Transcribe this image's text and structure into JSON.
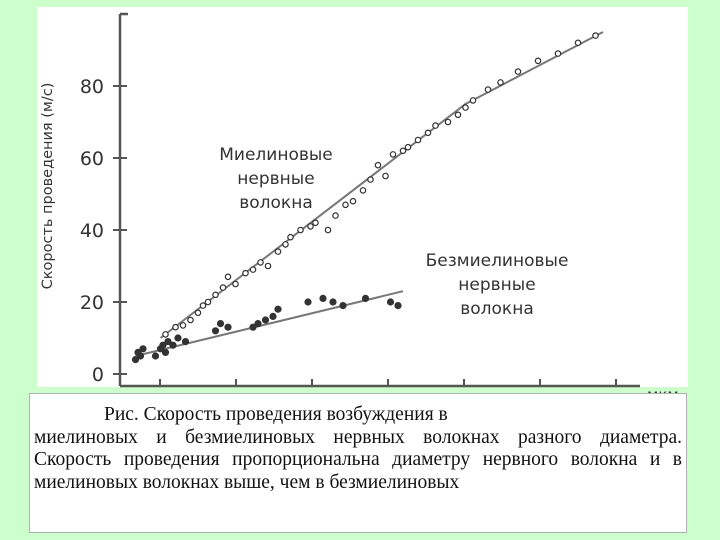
{
  "chart_data": {
    "type": "scatter",
    "ylabel": "Скорость проведения (м/с)",
    "xlabel": "мкм",
    "ylim": [
      0,
      100
    ],
    "y_ticks": [
      0,
      20,
      40,
      60,
      80
    ],
    "series": [
      {
        "name": "Миелиновые нервные волокна",
        "name_lines": [
          "Миелиновые",
          "нервные",
          "волокна"
        ],
        "marker": "hollow-circle",
        "points": [
          [
            1.5,
            11
          ],
          [
            1.9,
            13
          ],
          [
            2.2,
            13.5
          ],
          [
            2.5,
            15
          ],
          [
            2.8,
            17
          ],
          [
            3.0,
            19
          ],
          [
            3.2,
            20
          ],
          [
            3.5,
            22
          ],
          [
            3.8,
            24
          ],
          [
            4.0,
            27
          ],
          [
            4.3,
            25
          ],
          [
            4.7,
            28
          ],
          [
            5.0,
            29
          ],
          [
            5.3,
            31
          ],
          [
            5.6,
            30
          ],
          [
            6.0,
            34
          ],
          [
            6.3,
            36
          ],
          [
            6.5,
            38
          ],
          [
            6.9,
            40
          ],
          [
            7.3,
            41
          ],
          [
            7.5,
            42
          ],
          [
            8.0,
            40
          ],
          [
            8.3,
            44
          ],
          [
            8.7,
            47
          ],
          [
            9.0,
            48
          ],
          [
            9.4,
            51
          ],
          [
            9.7,
            54
          ],
          [
            10.0,
            58
          ],
          [
            10.3,
            55
          ],
          [
            10.6,
            61
          ],
          [
            11.0,
            62
          ],
          [
            11.2,
            63
          ],
          [
            11.6,
            65
          ],
          [
            12.0,
            67
          ],
          [
            12.3,
            69
          ],
          [
            12.8,
            70
          ],
          [
            13.2,
            72
          ],
          [
            13.5,
            74
          ],
          [
            13.8,
            76
          ],
          [
            14.4,
            79
          ],
          [
            14.9,
            81
          ],
          [
            15.6,
            84
          ],
          [
            16.4,
            87
          ],
          [
            17.2,
            89
          ],
          [
            18.0,
            92
          ],
          [
            18.7,
            94
          ]
        ]
      },
      {
        "name": "Безмиелиновые нервные волокна",
        "name_lines": [
          "Безмиелиновые",
          "нервные",
          "волокна"
        ],
        "marker": "filled-circle",
        "points": [
          [
            0.3,
            4
          ],
          [
            0.4,
            6
          ],
          [
            0.5,
            5
          ],
          [
            0.6,
            7
          ],
          [
            1.1,
            5
          ],
          [
            1.3,
            7
          ],
          [
            1.4,
            8
          ],
          [
            1.5,
            6
          ],
          [
            1.6,
            9
          ],
          [
            1.8,
            8
          ],
          [
            2.0,
            10
          ],
          [
            2.3,
            9
          ],
          [
            3.5,
            12
          ],
          [
            3.7,
            14
          ],
          [
            4.0,
            13
          ],
          [
            5.0,
            13
          ],
          [
            5.2,
            14
          ],
          [
            5.5,
            15
          ],
          [
            5.8,
            16
          ],
          [
            6.0,
            18
          ],
          [
            7.2,
            20
          ],
          [
            7.8,
            21
          ],
          [
            8.2,
            20
          ],
          [
            8.6,
            19
          ],
          [
            9.5,
            21
          ],
          [
            10.5,
            20
          ],
          [
            10.8,
            19
          ]
        ]
      }
    ],
    "fit_lines": [
      {
        "series": "Миелиновые нервные волокна",
        "x": [
          1.3,
          13.5,
          19.0
        ],
        "y": [
          10,
          75,
          95
        ]
      },
      {
        "series": "Безмиелиновые нервные волокна",
        "x": [
          0.3,
          11.0
        ],
        "y": [
          5,
          23
        ]
      }
    ],
    "grid": false,
    "legend": "inline-labels"
  },
  "caption": {
    "title": "Рис. Скорость проведения возбуждения в",
    "body": "миелиновых и безмиелиновых нервных волокнах разного диаметра. Скорость проведения пропорциональна диаметру нервного волокна и в миелиновых волокнах выше, чем в безмиелиновых"
  },
  "colors": {
    "background": "#ccffcc",
    "axis": "#555555",
    "marker": "#333333",
    "fit_line": "#777777",
    "label_text": "#333333"
  }
}
